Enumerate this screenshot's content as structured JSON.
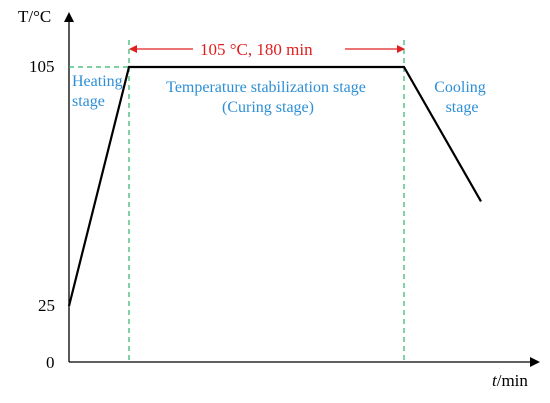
{
  "chart_data": {
    "type": "line",
    "ylabel": "T/°C",
    "xlabel_italic": "t",
    "xlabel_unit": "/min",
    "yticks": [
      "0",
      "25",
      "105"
    ],
    "series": [
      {
        "x": [
          0,
          1,
          2,
          3
        ],
        "y": [
          25,
          105,
          105,
          60
        ]
      }
    ],
    "stage_boundaries": [
      1,
      2
    ],
    "dimension_annotation": "105 °C, 180 min",
    "stages": [
      {
        "lines": [
          "Heating",
          "stage"
        ]
      },
      {
        "lines": [
          "Temperature stabilization stage",
          "(Curing stage)"
        ]
      },
      {
        "lines": [
          "Cooling",
          "stage"
        ]
      }
    ],
    "colors": {
      "curve": "#000000",
      "stage_text": "#2e8fd6",
      "annotation": "#e02020",
      "boundary_lines": "#2db56b"
    }
  }
}
